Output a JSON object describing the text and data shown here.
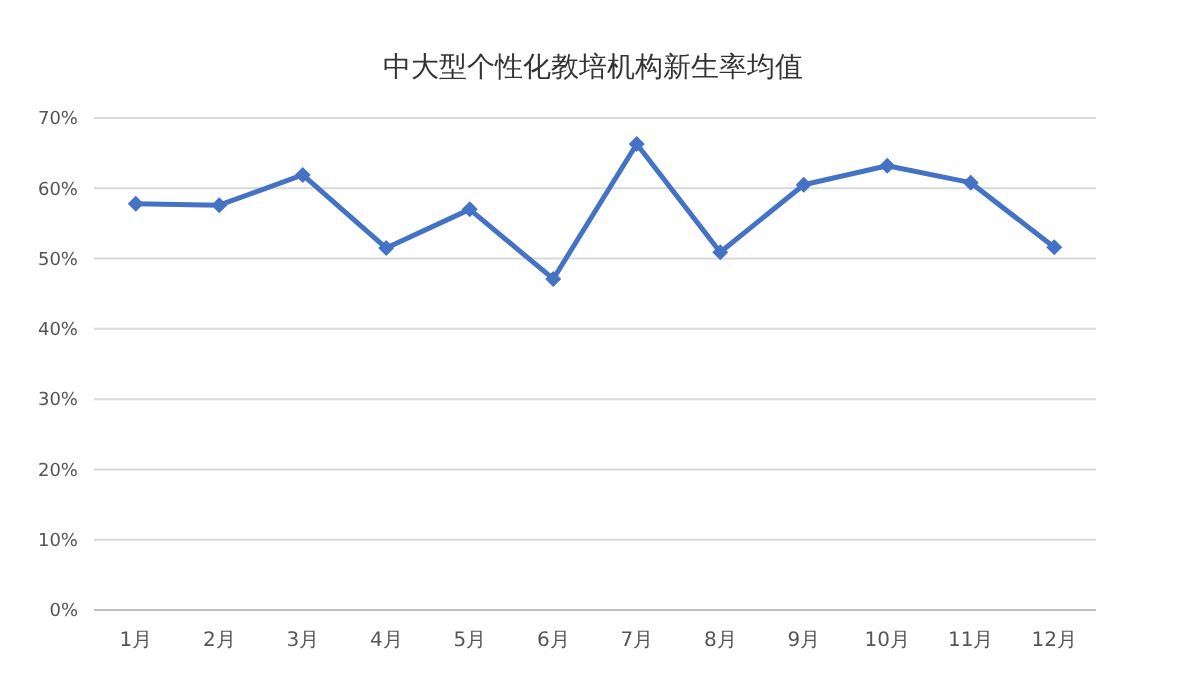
{
  "chart_data": {
    "type": "line",
    "title": "中大型个性化教培机构新生率均值",
    "categories": [
      "1月",
      "2月",
      "3月",
      "4月",
      "5月",
      "6月",
      "7月",
      "8月",
      "9月",
      "10月",
      "11月",
      "12月"
    ],
    "series": [
      {
        "color": "#4472c4",
        "values": [
          57.8,
          57.6,
          61.9,
          51.5,
          57.0,
          47.1,
          66.3,
          50.9,
          60.5,
          63.2,
          60.8,
          51.6
        ]
      }
    ],
    "ylim": [
      0,
      70
    ],
    "yticks": [
      {
        "value": 0,
        "label": "0%"
      },
      {
        "value": 10,
        "label": "10%"
      },
      {
        "value": 20,
        "label": "20%"
      },
      {
        "value": 30,
        "label": "30%"
      },
      {
        "value": 40,
        "label": "40%"
      },
      {
        "value": 50,
        "label": "50%"
      },
      {
        "value": 60,
        "label": "60%"
      },
      {
        "value": 70,
        "label": "70%"
      }
    ],
    "grid": "y",
    "marker": "diamond",
    "line_style": "solid"
  }
}
